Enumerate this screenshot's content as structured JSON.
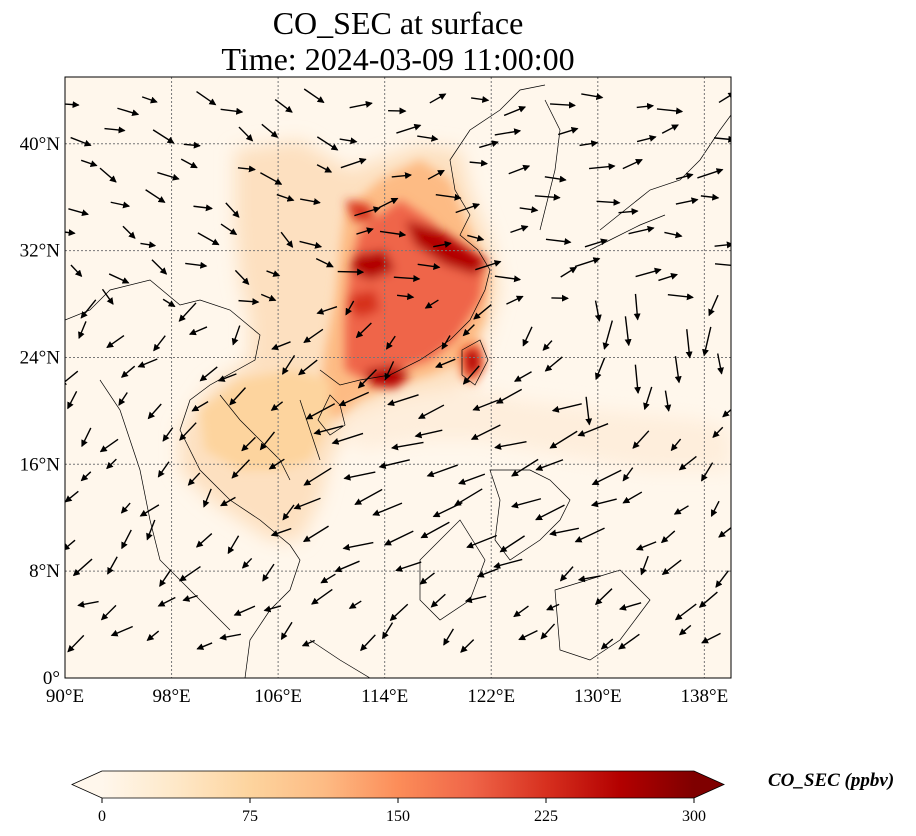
{
  "title": {
    "line1": "CO_SEC at surface",
    "line2": "Time: 2024-03-09 11:00:00"
  },
  "map": {
    "extent": {
      "lon": [
        90,
        140
      ],
      "lat": [
        0,
        45
      ]
    },
    "lat_ticks": [
      {
        "value": 0,
        "label": "0°"
      },
      {
        "value": 8,
        "label": "8°N"
      },
      {
        "value": 16,
        "label": "16°N"
      },
      {
        "value": 24,
        "label": "24°N"
      },
      {
        "value": 32,
        "label": "32°N"
      },
      {
        "value": 40,
        "label": "40°N"
      }
    ],
    "lon_ticks": [
      {
        "value": 90,
        "label": "90°E"
      },
      {
        "value": 98,
        "label": "98°E"
      },
      {
        "value": 106,
        "label": "106°E"
      },
      {
        "value": 114,
        "label": "114°E"
      },
      {
        "value": 122,
        "label": "122°E"
      },
      {
        "value": 130,
        "label": "130°E"
      },
      {
        "value": 138,
        "label": "138°E"
      }
    ],
    "gridlines": true,
    "plume_core_region": "eastern China and Taiwan",
    "wind_vectors": true
  },
  "colorbar": {
    "label": "CO_SEC (ppbv)",
    "colormap": "OrRd",
    "range": [
      0,
      300
    ],
    "extend": "both",
    "ticks": [
      {
        "value": 0,
        "label": "0"
      },
      {
        "value": 75,
        "label": "75"
      },
      {
        "value": 150,
        "label": "150"
      },
      {
        "value": 225,
        "label": "225"
      },
      {
        "value": 300,
        "label": "300"
      }
    ],
    "colors": [
      "#fff7ec",
      "#fee8c8",
      "#fdd49e",
      "#fdbb84",
      "#fc8d59",
      "#ef6548",
      "#d7301f",
      "#b30000",
      "#7f0000"
    ]
  }
}
